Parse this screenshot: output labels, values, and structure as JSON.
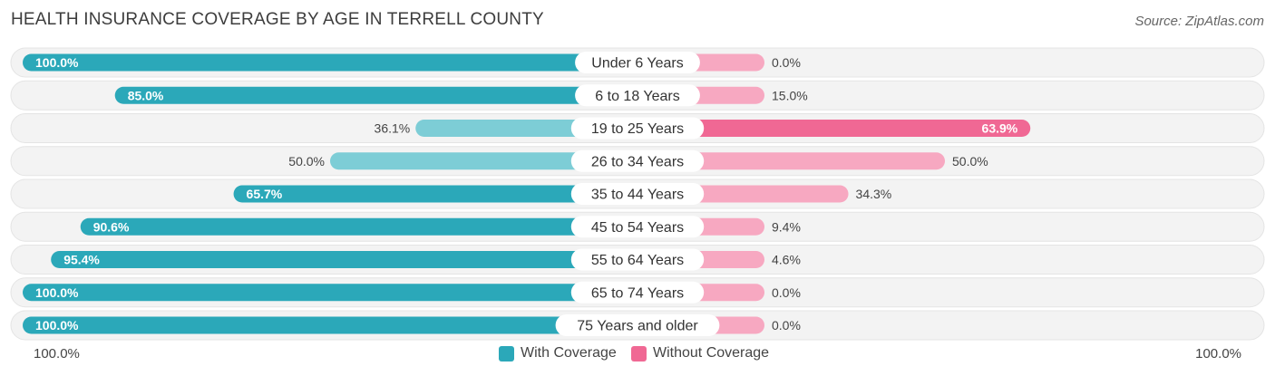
{
  "header": {
    "title": "HEALTH INSURANCE COVERAGE BY AGE IN TERRELL COUNTY",
    "source": "Source: ZipAtlas.com"
  },
  "colors": {
    "with_dark": "#2ba8b9",
    "with_light": "#7dcdd6",
    "without_dark": "#f06894",
    "without_light": "#f7a8c1",
    "track": "#f2f2f2"
  },
  "axis": {
    "left_label": "100.0%",
    "right_label": "100.0%"
  },
  "legend": {
    "with_label": "With Coverage",
    "without_label": "Without Coverage"
  },
  "chart_data": {
    "type": "bar",
    "orientation": "horizontal-diverging",
    "title": "HEALTH INSURANCE COVERAGE BY AGE IN TERRELL COUNTY",
    "categories": [
      "Under 6 Years",
      "6 to 18 Years",
      "19 to 25 Years",
      "26 to 34 Years",
      "35 to 44 Years",
      "45 to 54 Years",
      "55 to 64 Years",
      "65 to 74 Years",
      "75 Years and older"
    ],
    "series": [
      {
        "name": "With Coverage",
        "values": [
          100.0,
          85.0,
          36.1,
          50.0,
          65.7,
          90.6,
          95.4,
          100.0,
          100.0
        ],
        "labels": [
          "100.0%",
          "85.0%",
          "36.1%",
          "50.0%",
          "65.7%",
          "90.6%",
          "95.4%",
          "100.0%",
          "100.0%"
        ]
      },
      {
        "name": "Without Coverage",
        "values": [
          0.0,
          15.0,
          63.9,
          50.0,
          34.3,
          9.4,
          4.6,
          0.0,
          0.0
        ],
        "labels": [
          "0.0%",
          "15.0%",
          "63.9%",
          "50.0%",
          "34.3%",
          "9.4%",
          "4.6%",
          "0.0%",
          "0.0%"
        ]
      }
    ],
    "xlim": [
      0,
      100
    ],
    "legend_position": "bottom-center"
  }
}
